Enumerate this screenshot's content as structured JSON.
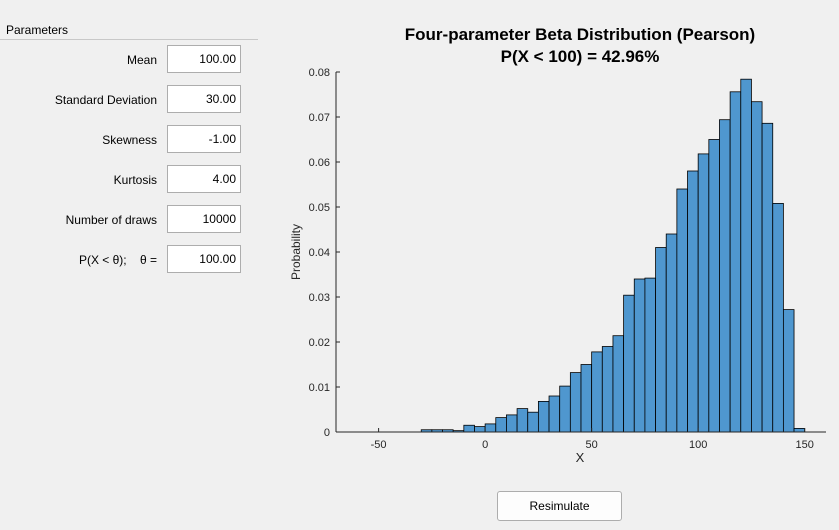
{
  "panel": {
    "title": "Parameters",
    "fields": [
      {
        "label": "Mean",
        "value": "100.00"
      },
      {
        "label": "Standard Deviation",
        "value": "30.00"
      },
      {
        "label": "Skewness",
        "value": "-1.00"
      },
      {
        "label": "Kurtosis",
        "value": "4.00"
      },
      {
        "label": "Number of draws",
        "value": "10000"
      },
      {
        "label": "P(X < θ);    θ =",
        "value": "100.00"
      }
    ]
  },
  "resimulate_label": "Resimulate",
  "colors": {
    "bar_fill": "#4f97cf",
    "bar_edge": "#000000",
    "background": "#f0f0f0"
  },
  "chart_data": {
    "type": "bar",
    "title": "Four-parameter Beta Distribution (Pearson)",
    "subtitle": "P(X < 100) = 42.96%",
    "xlabel": "X",
    "ylabel": "Probability",
    "xlim": [
      -70,
      160
    ],
    "ylim": [
      0,
      0.08
    ],
    "xticks": [
      -50,
      0,
      50,
      100,
      150
    ],
    "yticks": [
      0,
      0.01,
      0.02,
      0.03,
      0.04,
      0.05,
      0.06,
      0.07,
      0.08
    ],
    "ytick_labels": [
      "0",
      "0.01",
      "0.02",
      "0.03",
      "0.04",
      "0.05",
      "0.06",
      "0.07",
      "0.08"
    ],
    "bin_start": -30,
    "bin_width": 5,
    "values": [
      0.0005,
      0.0005,
      0.0005,
      0.0003,
      0.0015,
      0.0012,
      0.0018,
      0.0032,
      0.0038,
      0.0052,
      0.0044,
      0.0068,
      0.008,
      0.0102,
      0.0132,
      0.015,
      0.0178,
      0.019,
      0.0214,
      0.0304,
      0.034,
      0.0342,
      0.041,
      0.044,
      0.054,
      0.058,
      0.0618,
      0.065,
      0.0694,
      0.0756,
      0.0784,
      0.0734,
      0.0686,
      0.0508,
      0.0272,
      0.0008
    ],
    "grid": false
  }
}
